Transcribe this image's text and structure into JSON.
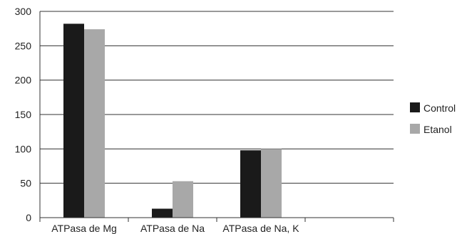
{
  "chart_data": {
    "type": "bar",
    "title": "",
    "xlabel": "",
    "ylabel": "",
    "categories": [
      "ATPasa de Mg",
      "ATPasa de Na",
      "ATPasa de Na, K"
    ],
    "series": [
      {
        "name": "Control",
        "values": [
          282,
          13,
          98
        ],
        "color": "#1a1a1a"
      },
      {
        "name": "Etanol",
        "values": [
          274,
          53,
          100
        ],
        "color": "#a8a8a8"
      }
    ],
    "ylim": [
      0,
      300
    ],
    "yticks": [
      0,
      50,
      100,
      150,
      200,
      250,
      300
    ],
    "grid": true,
    "legend": "right"
  }
}
